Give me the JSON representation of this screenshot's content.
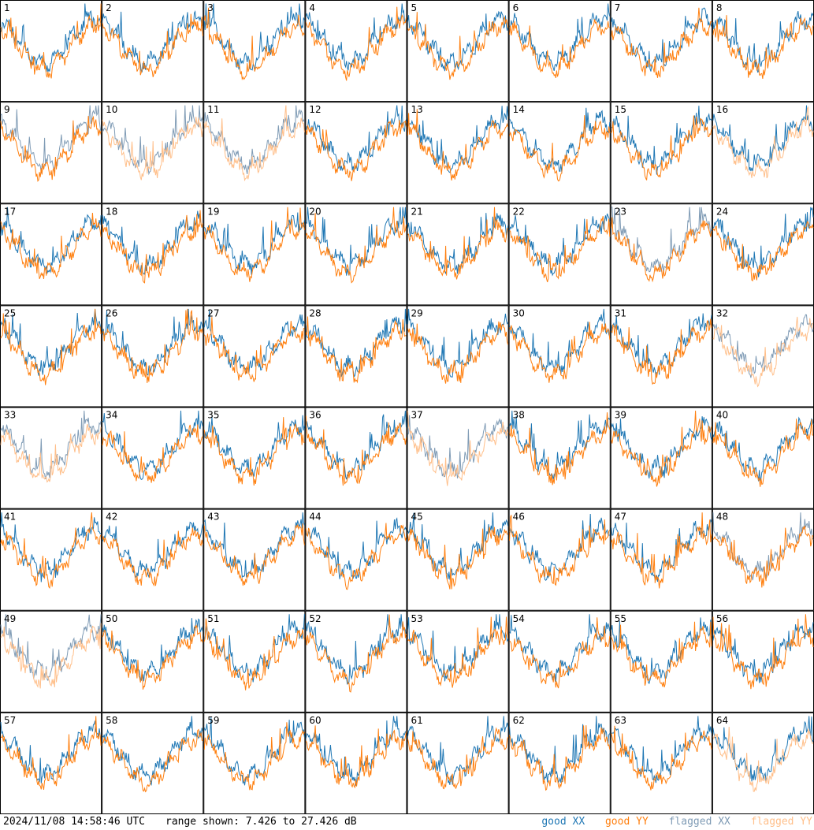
{
  "chart_data": {
    "type": "line",
    "layout": "8x8 grid of small multiples",
    "grid": true,
    "legend_position": "bottom-right",
    "panels": [
      "1",
      "2",
      "3",
      "4",
      "5",
      "6",
      "7",
      "8",
      "9",
      "10",
      "11",
      "12",
      "13",
      "14",
      "15",
      "16",
      "17",
      "18",
      "19",
      "20",
      "21",
      "22",
      "23",
      "24",
      "25",
      "26",
      "27",
      "28",
      "29",
      "30",
      "31",
      "32",
      "33",
      "34",
      "35",
      "36",
      "37",
      "38",
      "39",
      "40",
      "41",
      "42",
      "43",
      "44",
      "45",
      "46",
      "47",
      "48",
      "49",
      "50",
      "51",
      "52",
      "53",
      "54",
      "55",
      "56",
      "57",
      "58",
      "59",
      "60",
      "61",
      "62",
      "63",
      "64"
    ],
    "ylim": [
      7.426,
      27.426
    ],
    "series": [
      {
        "name": "good XX",
        "color": "#1f77b4"
      },
      {
        "name": "good YY",
        "color": "#ff7f0e"
      },
      {
        "name": "flagged XX",
        "color": "#7f9bb5"
      },
      {
        "name": "flagged YY",
        "color": "#ffbf8a"
      }
    ],
    "panel_status": {
      "xx": [
        "good",
        "good",
        "good",
        "good",
        "good",
        "good",
        "good",
        "good",
        "flagged",
        "flagged",
        "flagged",
        "good",
        "good",
        "good",
        "good",
        "good",
        "good",
        "good",
        "good",
        "good",
        "good",
        "good",
        "flagged",
        "good",
        "good",
        "good",
        "good",
        "good",
        "good",
        "good",
        "good",
        "flagged",
        "flagged",
        "good",
        "good",
        "good",
        "flagged",
        "good",
        "good",
        "good",
        "good",
        "good",
        "good",
        "good",
        "good",
        "good",
        "good",
        "flagged",
        "flagged",
        "good",
        "good",
        "good",
        "good",
        "good",
        "good",
        "good",
        "good",
        "good",
        "good",
        "good",
        "good",
        "good",
        "good",
        "good"
      ],
      "yy": [
        "good",
        "good",
        "good",
        "good",
        "good",
        "good",
        "good",
        "good",
        "good",
        "flagged",
        "flagged",
        "good",
        "good",
        "good",
        "good",
        "flagged",
        "good",
        "good",
        "good",
        "good",
        "good",
        "good",
        "good",
        "good",
        "good",
        "good",
        "good",
        "good",
        "good",
        "good",
        "good",
        "flagged",
        "flagged",
        "good",
        "good",
        "good",
        "flagged",
        "good",
        "good",
        "good",
        "good",
        "good",
        "good",
        "good",
        "good",
        "good",
        "good",
        "good",
        "flagged",
        "good",
        "good",
        "good",
        "good",
        "good",
        "good",
        "good",
        "good",
        "good",
        "good",
        "good",
        "good",
        "good",
        "good",
        "flagged"
      ]
    }
  },
  "footer": {
    "timestamp": "2024/11/08 14:58:46 UTC",
    "range": "range shown: 7.426 to 27.426 dB"
  },
  "legend": {
    "good_xx": "good XX",
    "good_yy": "good YY",
    "flagged_xx": "flagged XX",
    "flagged_yy": "flagged YY"
  }
}
